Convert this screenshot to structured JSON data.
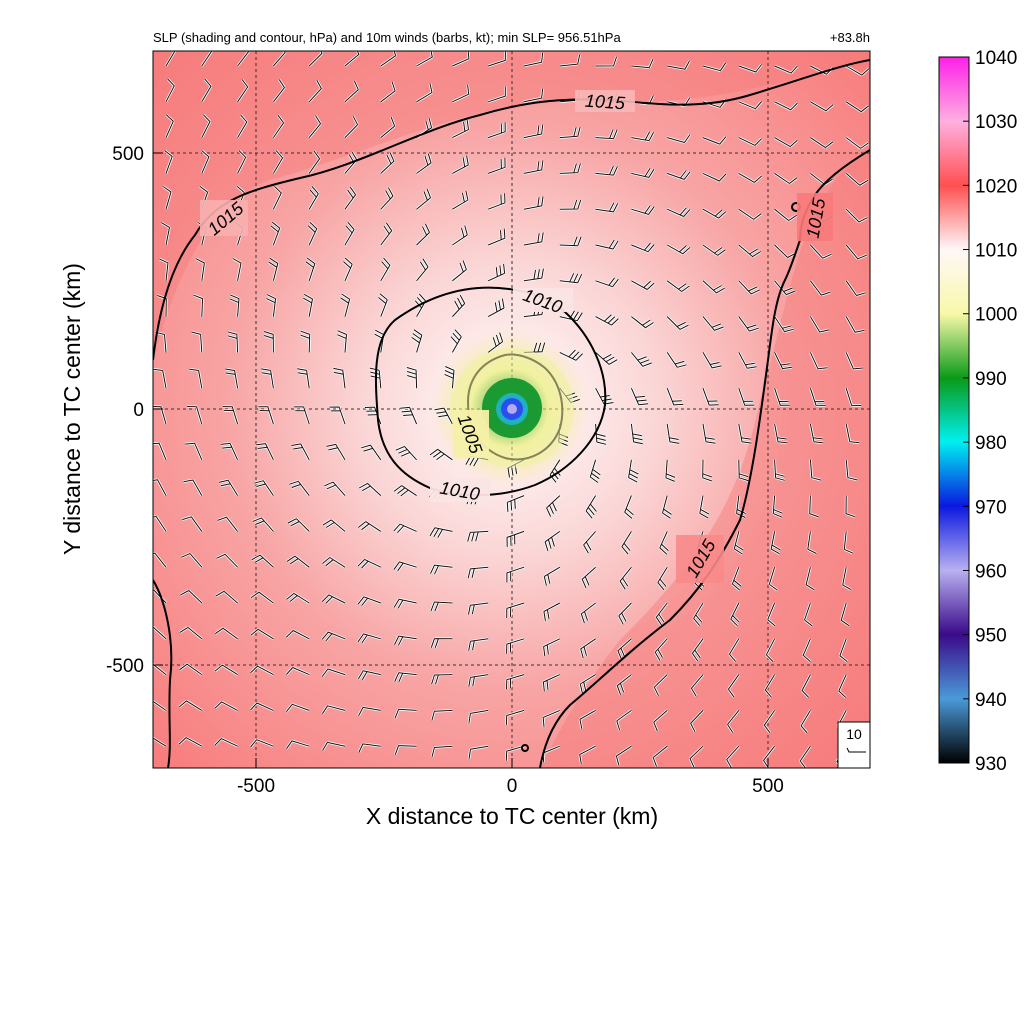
{
  "chart_data": {
    "type": "contour",
    "title": "SLP (shading and contour, hPa) and 10m winds (barbs, kt); min SLP= 956.51hPa",
    "forecast_hour": "+83.8h",
    "xlabel": "X distance to TC center (km)",
    "ylabel": "Y distance to TC center (km)",
    "xlim": [
      -700,
      700
    ],
    "ylim": [
      -700,
      700
    ],
    "xticks": [
      -500,
      0,
      500
    ],
    "yticks": [
      -500,
      0,
      500
    ],
    "xtick_labels": [
      "-500",
      "0",
      "500"
    ],
    "ytick_labels": [
      "-500",
      "0",
      "500"
    ],
    "grid": "dashed",
    "min_slp_hpa": 956.51,
    "contour_levels": [
      1005,
      1010,
      1015
    ],
    "contour_labels": [
      "1005",
      "1010",
      "1015",
      "1015",
      "1015",
      "1015"
    ],
    "colorbar": {
      "range": [
        930,
        1040
      ],
      "ticks": [
        930,
        940,
        950,
        960,
        970,
        980,
        990,
        1000,
        1010,
        1020,
        1030,
        1040
      ],
      "tick_labels": [
        "930",
        "940",
        "950",
        "960",
        "970",
        "980",
        "990",
        "1000",
        "1010",
        "1020",
        "1030",
        "1040"
      ],
      "colors": {
        "930": "#000000",
        "940": "#4a9ad8",
        "950": "#3a0a8a",
        "960": "#b8b0f0",
        "970": "#0b18e0",
        "980": "#00f0f0",
        "990": "#0a9a18",
        "1000": "#f8f8a8",
        "1010": "#fff8f8",
        "1020": "#ff5050",
        "1030": "#ffb0e0",
        "1040": "#ff20e8"
      }
    },
    "barb_reference": {
      "label": "10",
      "units": "kt"
    },
    "colors": {
      "field_edge": "#f87272",
      "field_mid": "#f8a5a5",
      "field_near_center": "#fde8e8",
      "inner_yellow": "#f2f2a0",
      "inner_green": "#1a9a30",
      "core_blue": "#2a4ef0",
      "core_purple": "#b6aaf0"
    }
  }
}
